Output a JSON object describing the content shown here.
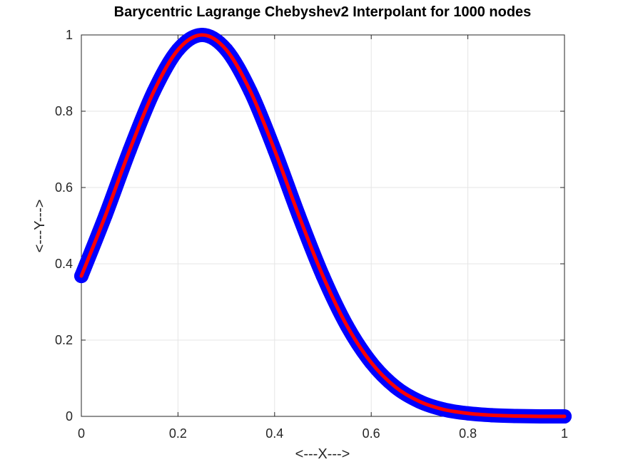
{
  "chart_data": {
    "type": "line",
    "title": "Barycentric Lagrange Chebyshev2 Interpolant for 1000 nodes",
    "xlabel": "<---X--->",
    "ylabel": "<---Y--->",
    "xlim": [
      0,
      1
    ],
    "ylim": [
      0,
      1
    ],
    "xticks": [
      "0",
      "0.2",
      "0.4",
      "0.6",
      "0.8",
      "1"
    ],
    "yticks": [
      "0",
      "0.2",
      "0.4",
      "0.6",
      "0.8",
      "1"
    ],
    "grid": true,
    "legend": "none",
    "x": [
      0,
      0.05,
      0.1,
      0.15,
      0.2,
      0.25,
      0.3,
      0.35,
      0.4,
      0.45,
      0.5,
      0.55,
      0.6,
      0.65,
      0.7,
      0.75,
      0.8,
      0.85,
      0.9,
      0.95,
      1.0
    ],
    "series": [
      {
        "style": "markers",
        "color": "#0000ff",
        "values": [
          0.368,
          0.527,
          0.698,
          0.852,
          0.961,
          1.0,
          0.961,
          0.852,
          0.698,
          0.527,
          0.368,
          0.237,
          0.141,
          0.077,
          0.039,
          0.018,
          0.008,
          0.003,
          0.001,
          0.0,
          0.0
        ]
      },
      {
        "style": "line",
        "color": "#ff0000",
        "values": [
          0.368,
          0.527,
          0.698,
          0.852,
          0.961,
          1.0,
          0.961,
          0.852,
          0.698,
          0.527,
          0.368,
          0.237,
          0.141,
          0.077,
          0.039,
          0.018,
          0.008,
          0.003,
          0.001,
          0.0,
          0.0
        ]
      }
    ]
  }
}
